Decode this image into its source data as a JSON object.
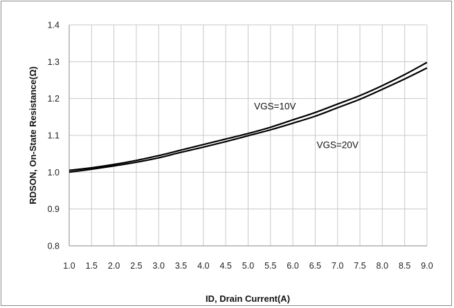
{
  "chart_data": {
    "type": "line",
    "xlabel": "ID, Drain Current(A)",
    "ylabel": "RDSON, On-State Resistance(Ω)",
    "xlim": [
      1.0,
      9.0
    ],
    "ylim": [
      0.8,
      1.4
    ],
    "x_ticks": [
      "1.0",
      "1.5",
      "2.0",
      "2.5",
      "3.0",
      "3.5",
      "4.0",
      "4.5",
      "5.0",
      "5.5",
      "6.0",
      "6.5",
      "7.0",
      "7.5",
      "8.0",
      "8.5",
      "9.0"
    ],
    "y_ticks": [
      "0.8",
      "0.9",
      "1.0",
      "1.1",
      "1.2",
      "1.3",
      "1.4"
    ],
    "grid": true,
    "legend": "none",
    "series": [
      {
        "name": "VGS=10V",
        "x": [
          1.0,
          1.5,
          2.0,
          2.5,
          3.0,
          3.5,
          4.0,
          4.5,
          5.0,
          5.5,
          6.0,
          6.5,
          7.0,
          7.5,
          8.0,
          8.5,
          9.0
        ],
        "y": [
          1.005,
          1.012,
          1.021,
          1.032,
          1.045,
          1.06,
          1.075,
          1.09,
          1.105,
          1.122,
          1.142,
          1.162,
          1.185,
          1.208,
          1.235,
          1.265,
          1.298
        ]
      },
      {
        "name": "VGS=20V",
        "x": [
          1.0,
          1.5,
          2.0,
          2.5,
          3.0,
          3.5,
          4.0,
          4.5,
          5.0,
          5.5,
          6.0,
          6.5,
          7.0,
          7.5,
          8.0,
          8.5,
          9.0
        ],
        "y": [
          1.0,
          1.008,
          1.017,
          1.027,
          1.039,
          1.054,
          1.068,
          1.083,
          1.099,
          1.115,
          1.133,
          1.152,
          1.175,
          1.198,
          1.225,
          1.253,
          1.283
        ]
      }
    ],
    "annotations": [
      {
        "text": "VGS=10V",
        "x": 5.6,
        "y": 1.17
      },
      {
        "text": "VGS=20V",
        "x": 7.0,
        "y": 1.065
      }
    ]
  }
}
